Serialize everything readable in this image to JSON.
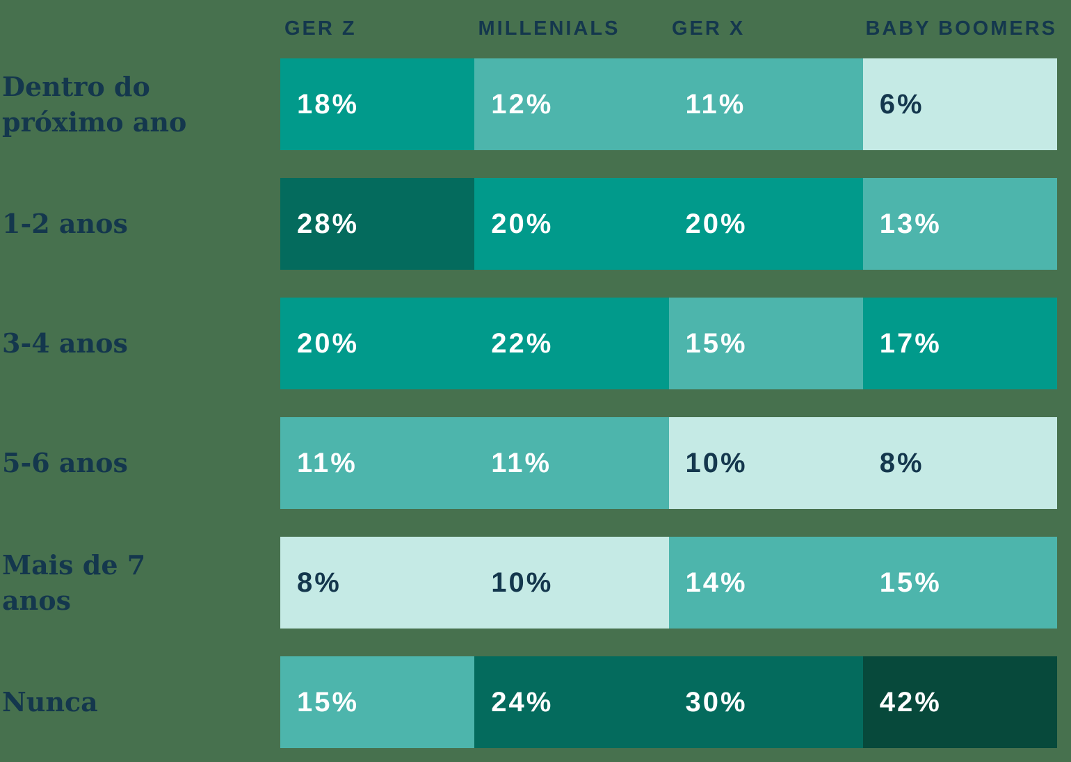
{
  "page": {
    "background_color": "#47714E"
  },
  "chart_data": {
    "type": "heatmap",
    "title": "",
    "unit": "%",
    "legend_position": "none",
    "grid": false,
    "header_text_color": "#14374D",
    "row_label_color": "#14374D",
    "columns": [
      "GER Z",
      "MILLENIALS",
      "GER X",
      "BABY BOOMERS"
    ],
    "rows": [
      {
        "label": "Dentro do próximo ano",
        "values": [
          18,
          12,
          11,
          6
        ],
        "display": [
          "18%",
          "12%",
          "11%",
          "6%"
        ],
        "tones": [
          "teal",
          "medium",
          "medium",
          "light"
        ]
      },
      {
        "label": "1-2 anos",
        "values": [
          28,
          20,
          20,
          13
        ],
        "display": [
          "28%",
          "20%",
          "20%",
          "13%"
        ],
        "tones": [
          "dark",
          "teal",
          "teal",
          "medium"
        ]
      },
      {
        "label": "3-4 anos",
        "values": [
          20,
          22,
          15,
          17
        ],
        "display": [
          "20%",
          "22%",
          "15%",
          "17%"
        ],
        "tones": [
          "teal",
          "teal",
          "medium",
          "teal"
        ]
      },
      {
        "label": "5-6 anos",
        "values": [
          11,
          11,
          10,
          8
        ],
        "display": [
          "11%",
          "11%",
          "10%",
          "8%"
        ],
        "tones": [
          "medium",
          "medium",
          "light",
          "light"
        ]
      },
      {
        "label": "Mais de 7 anos",
        "values": [
          8,
          10,
          14,
          15
        ],
        "display": [
          "8%",
          "10%",
          "14%",
          "15%"
        ],
        "tones": [
          "light",
          "light",
          "medium",
          "medium"
        ]
      },
      {
        "label": "Nunca",
        "values": [
          15,
          24,
          30,
          42
        ],
        "display": [
          "15%",
          "24%",
          "30%",
          "42%"
        ],
        "tones": [
          "medium",
          "dark",
          "dark",
          "darkest"
        ]
      }
    ],
    "palette": {
      "light": {
        "bg": "#C5EAE5",
        "text": "#14374D"
      },
      "medium": {
        "bg": "#4DB5AC",
        "text": "#FFFFFF"
      },
      "teal": {
        "bg": "#019A8B",
        "text": "#FFFFFF"
      },
      "dark": {
        "bg": "#046B5D",
        "text": "#FFFFFF"
      },
      "darkest": {
        "bg": "#07493B",
        "text": "#FFFFFF"
      }
    }
  }
}
